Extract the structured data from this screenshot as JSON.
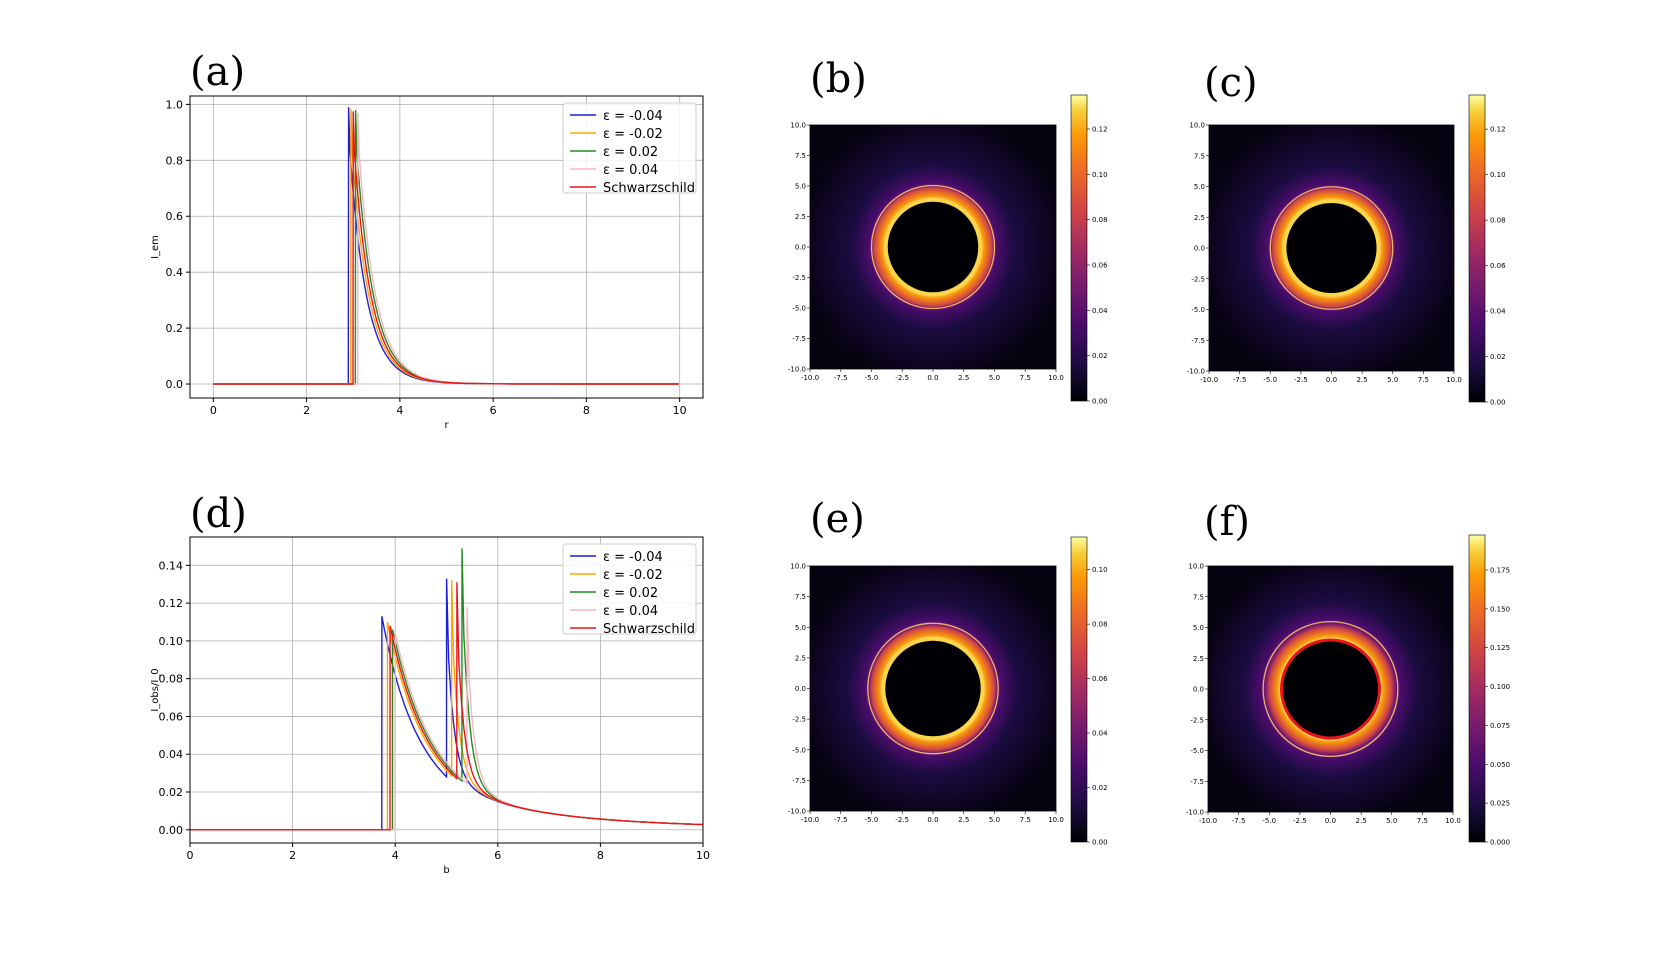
{
  "panel_labels": [
    "(a)",
    "(b)",
    "(c)",
    "(d)",
    "(e)",
    "(f)"
  ],
  "chart_data": [
    {
      "id": "a",
      "type": "line",
      "xlabel": "r",
      "ylabel": "I_em",
      "xlim": [
        -0.5,
        10.5
      ],
      "ylim": [
        -0.05,
        1.03
      ],
      "xticks": [
        0,
        2,
        4,
        6,
        8,
        10
      ],
      "yticks": [
        0.0,
        0.2,
        0.4,
        0.6,
        0.8,
        1.0
      ],
      "grid": true,
      "legend_position": "top-right",
      "series": [
        {
          "name": "ε = -0.04",
          "color": "#1f1fd6",
          "peak_x": 2.9,
          "peak_y": 0.99
        },
        {
          "name": "ε = -0.02",
          "color": "#ffa500",
          "peak_x": 2.95,
          "peak_y": 0.985
        },
        {
          "name": "ε = 0.02",
          "color": "#228b22",
          "peak_x": 3.05,
          "peak_y": 0.98
        },
        {
          "name": "ε = 0.04",
          "color": "#f4b6c2",
          "peak_x": 3.1,
          "peak_y": 0.97
        },
        {
          "name": "Schwarzschild",
          "color": "#e8141b",
          "peak_x": 3.0,
          "peak_y": 0.975
        }
      ]
    },
    {
      "id": "d",
      "type": "line",
      "xlabel": "b",
      "ylabel": "I_obs/I_0",
      "xlim": [
        0,
        10
      ],
      "ylim": [
        -0.007,
        0.155
      ],
      "xticks": [
        0,
        2,
        4,
        6,
        8,
        10
      ],
      "yticks": [
        0.0,
        0.02,
        0.04,
        0.06,
        0.08,
        0.1,
        0.12,
        0.14
      ],
      "grid": true,
      "legend_position": "top-right",
      "series": [
        {
          "name": "ε = -0.04",
          "color": "#1f1fd6",
          "b1": 3.74,
          "p1": 0.113,
          "b2": 5.0,
          "p2": 0.133
        },
        {
          "name": "ε = -0.02",
          "color": "#ffa500",
          "b1": 3.85,
          "p1": 0.11,
          "b2": 5.1,
          "p2": 0.132
        },
        {
          "name": "ε = 0.02",
          "color": "#228b22",
          "b1": 3.95,
          "p1": 0.106,
          "b2": 5.3,
          "p2": 0.149
        },
        {
          "name": "ε = 0.04",
          "color": "#f4b6c2",
          "b1": 4.0,
          "p1": 0.104,
          "b2": 5.4,
          "p2": 0.118
        },
        {
          "name": "Schwarzschild",
          "color": "#e8141b",
          "b1": 3.9,
          "p1": 0.108,
          "b2": 5.2,
          "p2": 0.131
        }
      ]
    },
    {
      "id": "b",
      "type": "heatmap",
      "xlim": [
        -10.0,
        10.0
      ],
      "ylim": [
        -10.0,
        10.0
      ],
      "xticks": [
        "-10.0",
        "-7.5",
        "-5.0",
        "-2.5",
        "0.0",
        "2.5",
        "5.0",
        "7.5",
        "10.0"
      ],
      "yticks": [
        "10.0",
        "7.5",
        "5.0",
        "2.5",
        "0.0",
        "-2.5",
        "-5.0",
        "-7.5",
        "-10.0"
      ],
      "colorbar_ticks": [
        "0.12",
        "0.10",
        "0.08",
        "0.06",
        "0.04",
        "0.02",
        "0.00"
      ],
      "shadow_radius": 3.8,
      "ring_radius": 5.0
    },
    {
      "id": "c",
      "type": "heatmap",
      "xlim": [
        -10.0,
        10.0
      ],
      "ylim": [
        -10.0,
        10.0
      ],
      "xticks": [
        "-10.0",
        "-7.5",
        "-5.0",
        "-2.5",
        "0.0",
        "2.5",
        "5.0",
        "7.5",
        "10.0"
      ],
      "yticks": [
        "10.0",
        "7.5",
        "5.0",
        "2.5",
        "0.0",
        "-2.5",
        "-5.0",
        "-7.5",
        "-10.0"
      ],
      "colorbar_ticks": [
        "0.12",
        "0.10",
        "0.08",
        "0.06",
        "0.04",
        "0.02",
        "0.00"
      ],
      "shadow_radius": 3.8,
      "ring_radius": 5.0
    },
    {
      "id": "e",
      "type": "heatmap",
      "xlim": [
        -10.0,
        10.0
      ],
      "ylim": [
        -10.0,
        10.0
      ],
      "xticks": [
        "-10.0",
        "-7.5",
        "-5.0",
        "-2.5",
        "0.0",
        "2.5",
        "5.0",
        "7.5",
        "10.0"
      ],
      "yticks": [
        "10.0",
        "7.5",
        "5.0",
        "2.5",
        "0.0",
        "-2.5",
        "-5.0",
        "-7.5",
        "-10.0"
      ],
      "colorbar_ticks": [
        "0.10",
        "0.08",
        "0.06",
        "0.04",
        "0.02",
        "0.00"
      ],
      "shadow_radius": 4.0,
      "ring_radius": 5.3
    },
    {
      "id": "f",
      "type": "heatmap",
      "xlim": [
        -10.0,
        10.0
      ],
      "ylim": [
        -10.0,
        10.0
      ],
      "xticks": [
        "-10.0",
        "-7.5",
        "-5.0",
        "-2.5",
        "0.0",
        "2.5",
        "5.0",
        "7.5",
        "10.0"
      ],
      "yticks": [
        "10.0",
        "7.5",
        "5.0",
        "2.5",
        "0.0",
        "-2.5",
        "-5.0",
        "-7.5",
        "-10.0"
      ],
      "colorbar_ticks": [
        "0.175",
        "0.150",
        "0.125",
        "0.100",
        "0.075",
        "0.050",
        "0.025",
        "0.000"
      ],
      "shadow_radius": 4.0,
      "ring_radius": 5.5
    }
  ]
}
